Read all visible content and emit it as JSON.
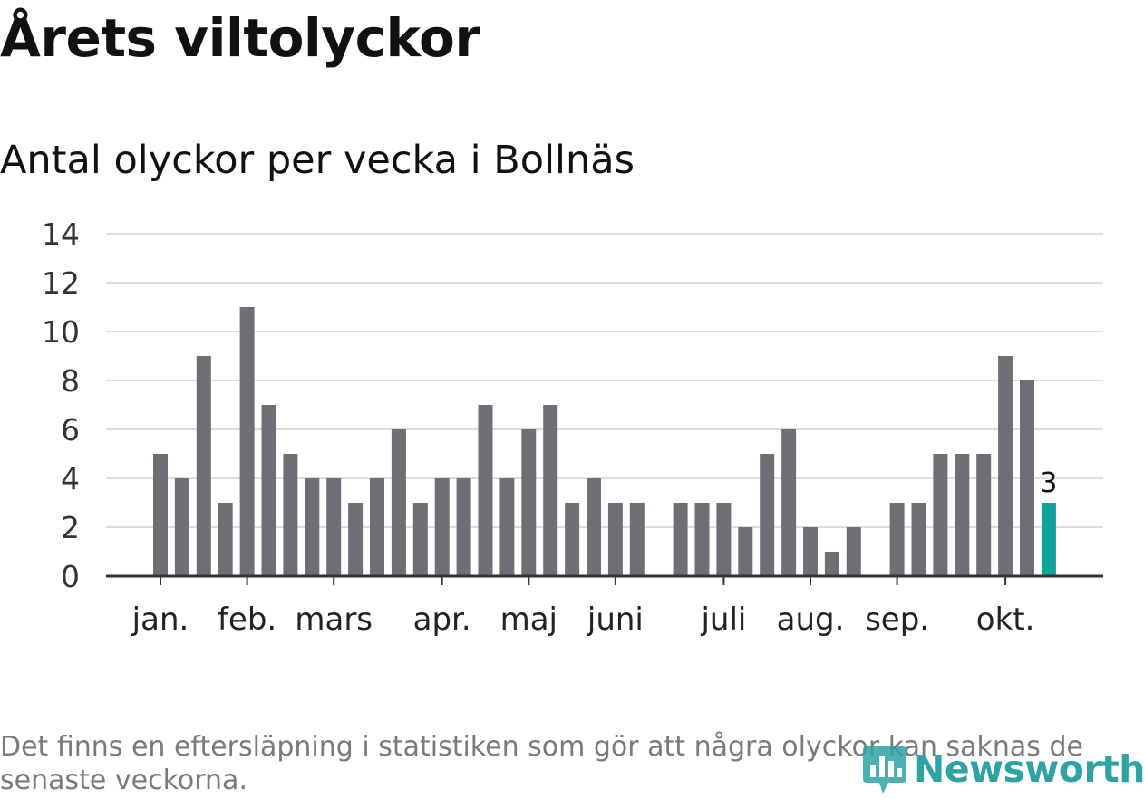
{
  "header": {
    "title": "Årets viltolyckor",
    "subtitle": "Antal olyckor per vecka i Bollnäs"
  },
  "footnote": "Det finns en eftersläpning i statistiken som gör att några olyckor kan saknas de senaste veckorna.",
  "logo": {
    "text": "Newsworthy"
  },
  "colors": {
    "bar": "#6f6e74",
    "highlight": "#0ea49b",
    "grid": "#dddddd",
    "axis": "#333333",
    "logo": "#2fa3a3"
  },
  "chart_data": {
    "type": "bar",
    "title": "Årets viltolyckor",
    "subtitle": "Antal olyckor per vecka i Bollnäs",
    "xlabel": "",
    "ylabel": "",
    "ylim": [
      0,
      14
    ],
    "y_ticks": [
      0,
      2,
      4,
      6,
      8,
      10,
      12,
      14
    ],
    "grid": true,
    "legend": "none",
    "weeks": [
      1,
      2,
      3,
      4,
      5,
      6,
      7,
      8,
      9,
      10,
      11,
      12,
      13,
      14,
      15,
      16,
      17,
      18,
      19,
      20,
      21,
      22,
      23,
      24,
      25,
      26,
      27,
      28,
      29,
      30,
      31,
      32,
      33,
      34,
      35,
      36,
      37,
      38,
      39,
      40,
      41,
      42
    ],
    "values": [
      5,
      4,
      9,
      3,
      11,
      7,
      5,
      4,
      4,
      3,
      4,
      6,
      3,
      4,
      4,
      7,
      4,
      6,
      7,
      3,
      4,
      3,
      3,
      0,
      3,
      3,
      3,
      2,
      5,
      6,
      2,
      1,
      2,
      0,
      3,
      3,
      5,
      5,
      5,
      9,
      8,
      3
    ],
    "highlight_index": 41,
    "highlight_label": "3",
    "month_labels": [
      {
        "label": "jan.",
        "week": 1
      },
      {
        "label": "feb.",
        "week": 5
      },
      {
        "label": "mars",
        "week": 9
      },
      {
        "label": "apr.",
        "week": 14
      },
      {
        "label": "maj",
        "week": 18
      },
      {
        "label": "juni",
        "week": 22
      },
      {
        "label": "juli",
        "week": 27
      },
      {
        "label": "aug.",
        "week": 31
      },
      {
        "label": "sep.",
        "week": 35
      },
      {
        "label": "okt.",
        "week": 40
      }
    ]
  }
}
